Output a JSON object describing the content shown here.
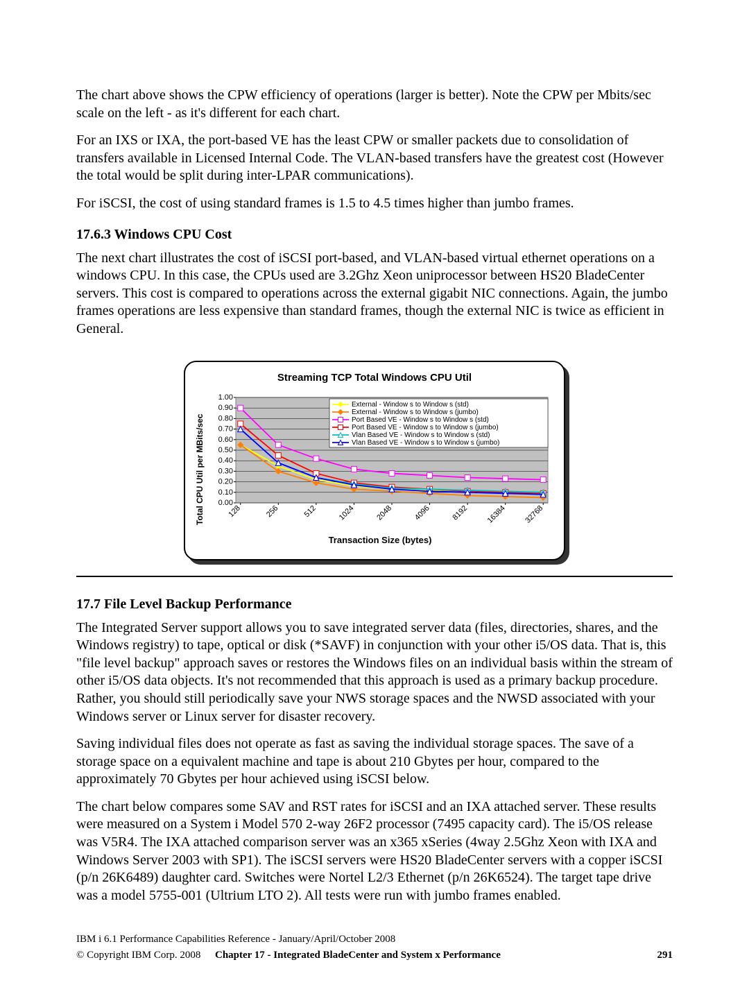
{
  "paragraphs": {
    "p1": "The chart above shows the CPW efficiency of operations (larger is better).  Note the CPW per Mbits/sec scale on the left - as it's different for each chart.",
    "p2": "For an IXS or IXA, the port-based VE has the least CPW or smaller packets due to consolidation of transfers available in Licensed Internal Code. The VLAN-based transfers have the greatest cost (However the total would be split during inter-LPAR communications).",
    "p3": "For iSCSI, the cost of using standard frames is 1.5 to 4.5 times higher than jumbo frames.",
    "h1": "17.6.3 Windows CPU Cost",
    "p4": "The next chart illustrates the cost of iSCSI port-based, and VLAN-based virtual ethernet operations on a windows CPU. In this case, the CPUs used are 3.2Ghz Xeon uniprocessor between HS20 BladeCenter servers.  This cost is compared to operations across the external gigabit NIC connections.  Again, the jumbo frames operations are less expensive than standard frames, though the external NIC is twice as efficient in General.",
    "h2": "17.7 File Level Backup Performance",
    "p5": "The Integrated Server support allows you to save integrated server data (files, directories, shares, and the Windows registry) to tape, optical or disk (*SAVF) in conjunction with your other i5/OS data. That is, this \"file level backup\" approach saves or restores the Windows files on an individual basis within the stream of other i5/OS data objects. It's not recommended that this approach is used as a primary backup procedure. Rather, you should still periodically save your NWS storage spaces and the NWSD associated with your Windows server or Linux server for disaster recovery.",
    "p6": "Saving individual files does not operate as fast as saving the individual storage spaces.  The save of a storage space on a equivalent machine and tape is about 210 Gbytes per hour, compared to the approximately 70 Gbytes per hour achieved using iSCSI below.",
    "p7": "The chart below compares some SAV and RST rates for iSCSI and an IXA attached server. These results were measured on a System i Model 570 2-way 26F2 processor (7495 capacity card). The i5/OS release was V5R4. The IXA attached comparison server was an x365 xSeries (4way 2.5Ghz Xeon with IXA and Windows Server 2003 with SP1).  The iSCSI servers were HS20 BladeCenter servers with a copper iSCSI (p/n 26K6489) daughter card.  Switches were Nortel L2/3 Ethernet (p/n 26K6524).  The target tape drive was a model 5755-001 (Ultrium LTO 2). All tests were run with jumbo frames enabled."
  },
  "footer": {
    "line1": "IBM i 6.1 Performance Capabilities Reference - January/April/October 2008",
    "copyright": "© Copyright IBM Corp. 2008",
    "chapter": "Chapter 17 - Integrated BladeCenter and System x Performance",
    "page": "291"
  },
  "chart": {
    "title": "Streaming TCP Total Windows CPU Util",
    "y_label": "Total CPU Util per MBits/sec",
    "x_label": "Transaction Size (bytes)",
    "title_fontsize": 15,
    "label_fontsize": 13,
    "tick_fontsize": 11,
    "legend_fontsize": 10,
    "background_color": "#c0c0c0",
    "grid_color": "#000000",
    "border_color": "#808080",
    "font_family": "Arial",
    "x_categories": [
      "128",
      "256",
      "512",
      "1024",
      "2048",
      "4096",
      "8192",
      "16384",
      "32768"
    ],
    "y_ticks": [
      "0.00",
      "0.10",
      "0.20",
      "0.30",
      "0.40",
      "0.50",
      "0.60",
      "0.70",
      "0.80",
      "0.90",
      "1.00"
    ],
    "ylim": [
      0,
      1.0
    ],
    "series": [
      {
        "name": "External - Window s to Window s (std)",
        "color": "#ffff00",
        "marker": "diamond",
        "values": [
          0.55,
          0.35,
          0.22,
          0.16,
          0.13,
          0.12,
          0.1,
          0.09,
          0.08
        ]
      },
      {
        "name": "External - Window s to Window s (jumbo)",
        "color": "#ff8000",
        "marker": "diamond",
        "values": [
          0.55,
          0.3,
          0.19,
          0.13,
          0.11,
          0.09,
          0.07,
          0.06,
          0.05
        ]
      },
      {
        "name": "Port Based VE - Window s to Window s (std)",
        "color": "#ff00ff",
        "marker": "square",
        "values": [
          0.9,
          0.55,
          0.42,
          0.32,
          0.28,
          0.26,
          0.24,
          0.23,
          0.22
        ]
      },
      {
        "name": "Port Based VE - Window s to Window s (jumbo)",
        "color": "#ff0000",
        "marker": "square",
        "values": [
          0.75,
          0.45,
          0.28,
          0.19,
          0.15,
          0.13,
          0.11,
          0.1,
          0.09
        ]
      },
      {
        "name": "Vlan Based VE - Window s to Window s (std)",
        "color": "#00c0c0",
        "marker": "triangle",
        "values": [
          0.7,
          0.38,
          0.24,
          0.18,
          0.14,
          0.13,
          0.12,
          0.11,
          0.1
        ]
      },
      {
        "name": "Vlan Based VE - Window s to Window s (jumbo)",
        "color": "#0000ff",
        "marker": "triangle",
        "values": [
          0.7,
          0.38,
          0.24,
          0.17,
          0.13,
          0.11,
          0.1,
          0.09,
          0.08
        ]
      }
    ]
  }
}
